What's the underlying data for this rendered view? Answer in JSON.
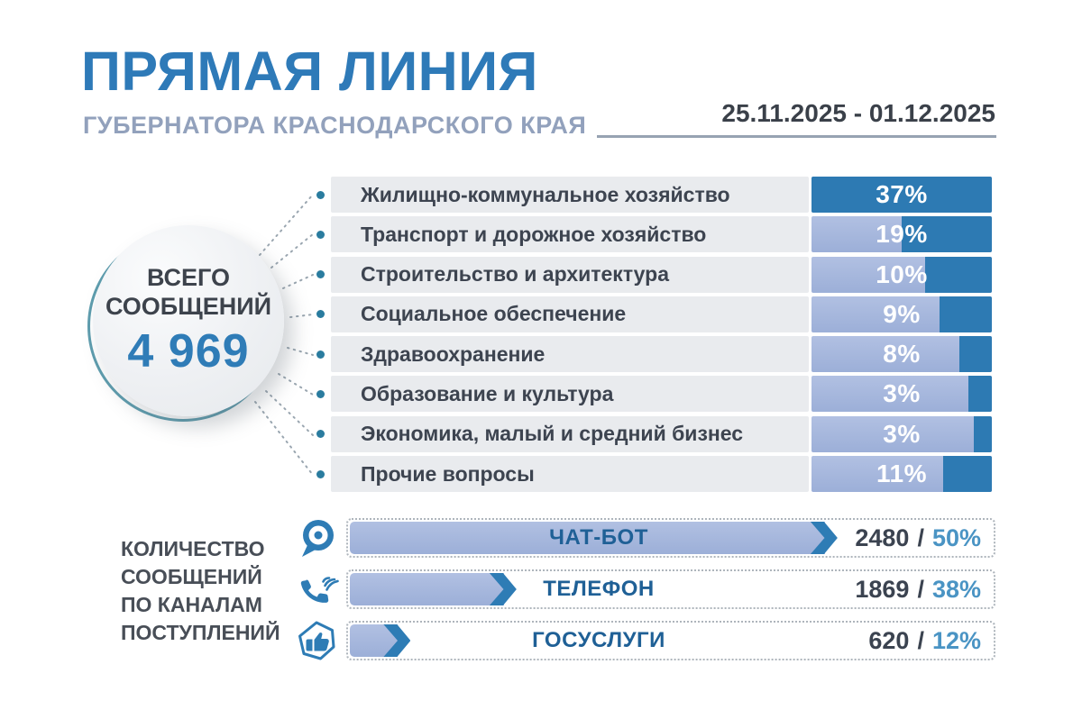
{
  "header": {
    "title": "ПРЯМАЯ ЛИНИЯ",
    "subtitle": "ГУБЕРНАТОРА КРАСНОДАРСКОГО КРАЯ",
    "date_range": "25.11.2025 - 01.12.2025"
  },
  "total": {
    "line1": "ВСЕГО",
    "line2": "СООБЩЕНИЙ",
    "value": "4 969"
  },
  "topics": [
    {
      "label": "Жилищно-коммунальное хозяйство",
      "pct_label": "37%",
      "fill_pct": 100
    },
    {
      "label": "Транспорт и дорожное хозяйство",
      "pct_label": "19%",
      "fill_pct": 50
    },
    {
      "label": "Строительство и архитектура",
      "pct_label": "10%",
      "fill_pct": 37
    },
    {
      "label": "Социальное обеспечение",
      "pct_label": "9%",
      "fill_pct": 29
    },
    {
      "label": "Здравоохранение",
      "pct_label": "8%",
      "fill_pct": 18
    },
    {
      "label": "Образование и культура",
      "pct_label": "3%",
      "fill_pct": 13
    },
    {
      "label": "Экономика, малый и средний бизнес",
      "pct_label": "3%",
      "fill_pct": 10
    },
    {
      "label": "Прочие вопросы",
      "pct_label": "11%",
      "fill_pct": 27
    }
  ],
  "channels": {
    "heading": "КОЛИЧЕСТВО\nСООБЩЕНИЙ\nПО КАНАЛАМ\nПОСТУПЛЕНИЙ",
    "items": [
      {
        "icon": "chat-bot-icon",
        "label": "ЧАТ-БОТ",
        "count": "2480",
        "sep": "/",
        "pct_label": "50%",
        "bar_pct": 74
      },
      {
        "icon": "phone-icon",
        "label": "ТЕЛЕФОН",
        "count": "1869",
        "sep": "/",
        "pct_label": "38%",
        "bar_pct": 24
      },
      {
        "icon": "gosuslugi-icon",
        "label": "ГОСУСЛУГИ",
        "count": "620",
        "sep": "/",
        "pct_label": "12%",
        "bar_pct": 7.5
      }
    ]
  },
  "colors": {
    "title_blue": "#2e7ab8",
    "subtitle_gray_blue": "#92a1bc",
    "dark_bar_blue": "#2d7ab3",
    "light_bar_periwinkle": "#9cafd8",
    "label_box_gray": "#e9ebee",
    "text_dark": "#3d4450",
    "bullet_teal": "#2a7c9f",
    "ring_teal": "#5e9dae",
    "pct_steel_blue": "#4a94c4"
  },
  "chart_data": [
    {
      "type": "bar",
      "title": "Темы обращений (доля сообщений), %",
      "categories": [
        "Жилищно-коммунальное хозяйство",
        "Транспорт и дорожное хозяйство",
        "Строительство и архитектура",
        "Социальное обеспечение",
        "Здравоохранение",
        "Образование и культура",
        "Экономика, малый и средний бизнес",
        "Прочие вопросы"
      ],
      "values": [
        37,
        19,
        10,
        9,
        8,
        3,
        3,
        11
      ],
      "xlabel": "",
      "ylabel": "",
      "unit": "%",
      "total_messages": 4969,
      "orientation": "horizontal",
      "grid": false,
      "legend": false
    },
    {
      "type": "bar",
      "title": "Количество сообщений по каналам поступлений",
      "categories": [
        "ЧАТ-БОТ",
        "ТЕЛЕФОН",
        "ГОСУСЛУГИ"
      ],
      "series": [
        {
          "name": "count",
          "values": [
            2480,
            1869,
            620
          ]
        },
        {
          "name": "percent",
          "values": [
            50,
            38,
            12
          ]
        }
      ],
      "orientation": "horizontal",
      "grid": false,
      "legend": false
    }
  ]
}
